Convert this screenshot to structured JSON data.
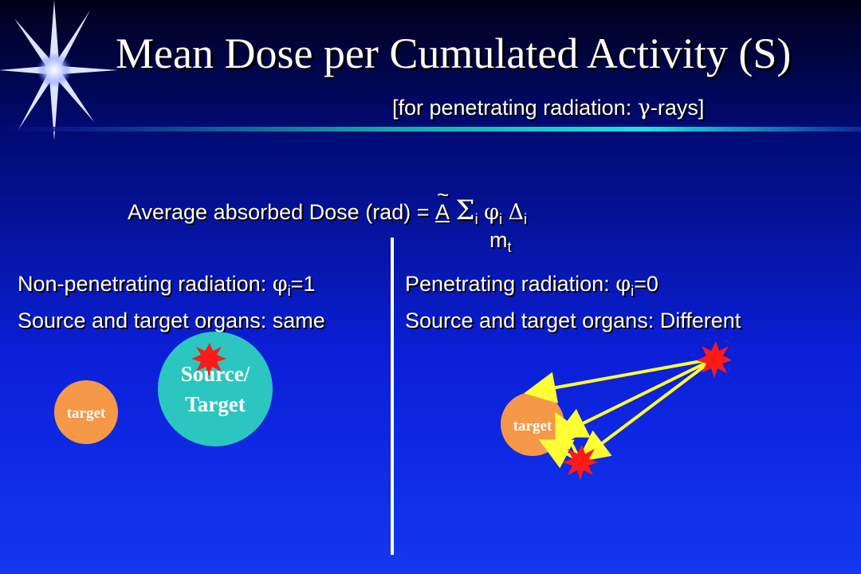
{
  "title": "Mean Dose per Cumulated Activity (S)",
  "subtitle": {
    "prefix": "[for penetrating radiation: ",
    "gamma": "γ",
    "suffix": "-rays]"
  },
  "formula": {
    "label": "Average absorbed Dose (rad) = ",
    "numerator_symbol": "A",
    "sigma": "Σ",
    "phi": "φ",
    "delta": "Δ",
    "index": "i",
    "denominator": "m",
    "denominator_sub": "t"
  },
  "left": {
    "line1_prefix": "Non-penetrating radiation: ",
    "line1_phi": "φ",
    "line1_sub": "i",
    "line1_suffix": "=1",
    "line2": "Source and target organs: same"
  },
  "right": {
    "line1_prefix": "Penetrating radiation: ",
    "line1_phi": "φ",
    "line1_sub": "i",
    "line1_suffix": "=0",
    "line2": "Source and target organs: Different"
  },
  "diagram": {
    "left_target_label": "target",
    "source_target_line1": "Source/",
    "source_target_line2": "Target",
    "right_target_label": "target",
    "colors": {
      "target": "#f59848",
      "source_target": "#2cc6c0",
      "burst": "#ff1a1a",
      "ray": "#ffff33"
    }
  }
}
